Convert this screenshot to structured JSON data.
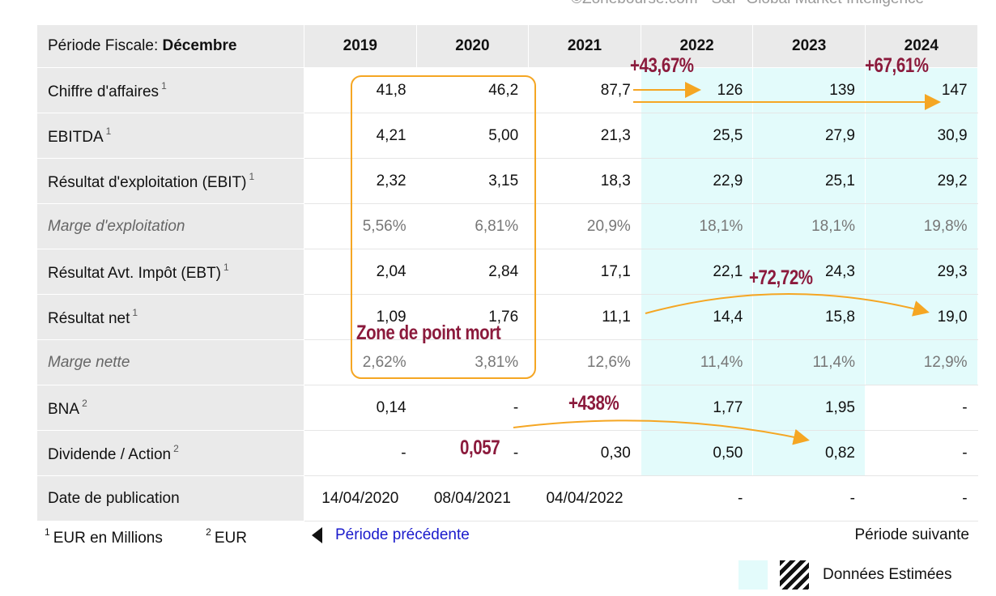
{
  "source": "©Zonebourse.com - S&P Global Market Intelligence",
  "header": {
    "period_label": "Période Fiscale:",
    "period_value": "Décembre",
    "years": [
      "2019",
      "2020",
      "2021",
      "2022",
      "2023",
      "2024"
    ]
  },
  "rows": [
    {
      "label": "Chiffre d'affaires",
      "unit": "1",
      "values": [
        "41,8",
        "46,2",
        "87,7",
        "126",
        "139",
        "147"
      ]
    },
    {
      "label": "EBITDA",
      "unit": "1",
      "values": [
        "4,21",
        "5,00",
        "21,3",
        "25,5",
        "27,9",
        "30,9"
      ]
    },
    {
      "label": "Résultat d'exploitation (EBIT)",
      "unit": "1",
      "values": [
        "2,32",
        "3,15",
        "18,3",
        "22,9",
        "25,1",
        "29,2"
      ]
    },
    {
      "label": "Marge d'exploitation",
      "unit": "",
      "values": [
        "5,56%",
        "6,81%",
        "20,9%",
        "18,1%",
        "18,1%",
        "19,8%"
      ]
    },
    {
      "label": "Résultat Avt. Impôt (EBT)",
      "unit": "1",
      "values": [
        "2,04",
        "2,84",
        "17,1",
        "22,1",
        "24,3",
        "29,3"
      ]
    },
    {
      "label": "Résultat net",
      "unit": "1",
      "values": [
        "1,09",
        "1,76",
        "11,1",
        "14,4",
        "15,8",
        "19,0"
      ]
    },
    {
      "label": "Marge nette",
      "unit": "",
      "values": [
        "2,62%",
        "3,81%",
        "12,6%",
        "11,4%",
        "11,4%",
        "12,9%"
      ]
    },
    {
      "label": "BNA",
      "unit": "2",
      "values": [
        "0,14",
        "-",
        "",
        "1,77",
        "1,95",
        "-"
      ]
    },
    {
      "label": "Dividende / Action",
      "unit": "2",
      "values": [
        "-",
        "-",
        "0,30",
        "0,50",
        "0,82",
        "-"
      ]
    },
    {
      "label": "Date de publication",
      "unit": "",
      "values": [
        "14/04/2020",
        "08/04/2021",
        "04/04/2022",
        "-",
        "-",
        "-"
      ]
    }
  ],
  "annotations": {
    "ca_2022": "+43,67%",
    "ca_2024": "+67,61%",
    "rn": "+72,72%",
    "bna": "+438%",
    "div_2020": "0,057",
    "zone": "Zone de point mort"
  },
  "footer": {
    "note1_mark": "1",
    "note1": "EUR en Millions",
    "note2_mark": "2",
    "note2": "EUR",
    "prev": "Période précédente",
    "next": "Période suivante",
    "legend_label": "Données Estimées"
  },
  "colors": {
    "estimate_bg": "#e3fbfb",
    "annotation": "#8b1a3c",
    "arrow": "#f5a623",
    "link": "#1a1acc"
  }
}
